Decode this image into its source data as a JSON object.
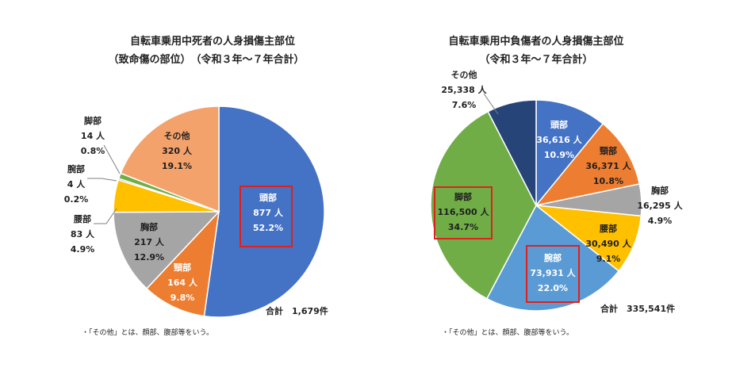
{
  "chart_data": [
    {
      "type": "pie",
      "title": "自転車乗用中死者の人身損傷主部位",
      "subtitle": "（致命傷の部位）　（令和３年～７年合計）",
      "total_label": "合計　1,679件",
      "note": "・「その他」とは、顔部、腹部等をいう。",
      "highlight": "頭部",
      "slices": [
        {
          "name": "頭部",
          "count": "877 人",
          "pct": "52.2%",
          "value": 877,
          "color": "#4472c4"
        },
        {
          "name": "頸部",
          "count": "164 人",
          "pct": "9.8%",
          "value": 164,
          "color": "#ed7d31"
        },
        {
          "name": "胸部",
          "count": "217 人",
          "pct": "12.9%",
          "value": 217,
          "color": "#a5a5a5"
        },
        {
          "name": "腰部",
          "count": "83 人",
          "pct": "4.9%",
          "value": 83,
          "color": "#ffc000"
        },
        {
          "name": "腕部",
          "count": "4 人",
          "pct": "0.2%",
          "value": 4,
          "color": "#5b9bd5"
        },
        {
          "name": "脚部",
          "count": "14 人",
          "pct": "0.8%",
          "value": 14,
          "color": "#70ad47"
        },
        {
          "name": "その他",
          "count": "320 人",
          "pct": "19.1%",
          "value": 320,
          "color": "#f4a26c"
        }
      ]
    },
    {
      "type": "pie",
      "title": "自転車乗用中負傷者の人身損傷主部位",
      "subtitle": "（令和３年～７年合計）",
      "total_label": "合計　335,541件",
      "note": "・「その他」とは、顔部、腹部等をいう。",
      "highlight": [
        "脚部",
        "腕部"
      ],
      "slices": [
        {
          "name": "頭部",
          "count": "36,616 人",
          "pct": "10.9%",
          "value": 36616,
          "color": "#4472c4"
        },
        {
          "name": "頸部",
          "count": "36,371 人",
          "pct": "10.8%",
          "value": 36371,
          "color": "#ed7d31"
        },
        {
          "name": "胸部",
          "count": "16,295 人",
          "pct": "4.9%",
          "value": 16295,
          "color": "#a5a5a5"
        },
        {
          "name": "腰部",
          "count": "30,490 人",
          "pct": "9.1%",
          "value": 30490,
          "color": "#ffc000"
        },
        {
          "name": "腕部",
          "count": "73,931 人",
          "pct": "22.0%",
          "value": 73931,
          "color": "#5b9bd5"
        },
        {
          "name": "脚部",
          "count": "116,500 人",
          "pct": "34.7%",
          "value": 116500,
          "color": "#70ad47"
        },
        {
          "name": "その他",
          "count": "25,338 人",
          "pct": "7.6%",
          "value": 25338,
          "color": "#264478"
        }
      ]
    }
  ]
}
